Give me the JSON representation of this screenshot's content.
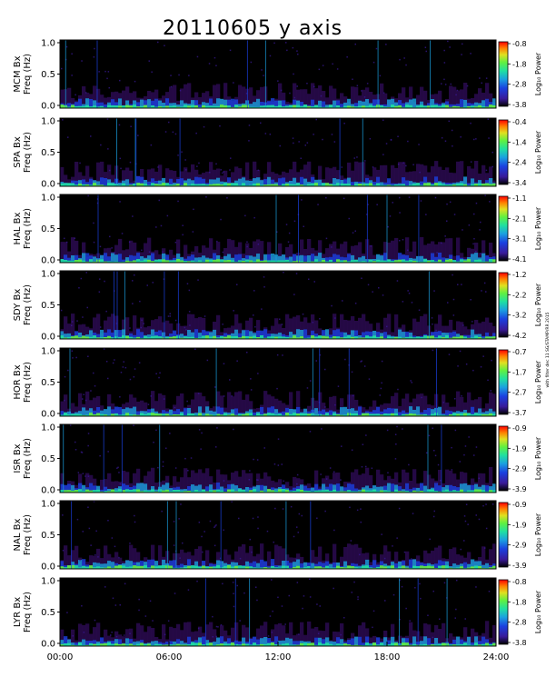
{
  "chart_data": {
    "type": "heatmap",
    "title": "20110605 y axis",
    "x_axis": {
      "range": [
        "00:00",
        "24:00"
      ],
      "ticks": [
        "00:00",
        "06:00",
        "12:00",
        "18:00",
        "24:00"
      ],
      "tick_hours": [
        0,
        6,
        12,
        18,
        24
      ]
    },
    "y_axis": {
      "range": [
        0.0,
        1.0
      ],
      "ticks": [
        "0.0",
        "0.5",
        "1.0"
      ],
      "tick_values": [
        0.0,
        0.5,
        1.0
      ]
    },
    "colorbar_label": "Log₁₀ Power",
    "side_note": "with filter dec 11 SG/STAMP/RR 2015",
    "panels": [
      {
        "station": "MCM",
        "ylabel": "MCM Bx",
        "ylabel2": "Freq (Hz)",
        "cbar_ticks": [
          "-0.8",
          "-1.8",
          "-2.8",
          "-3.8"
        ]
      },
      {
        "station": "SPA",
        "ylabel": "SPA Bx",
        "ylabel2": "Freq (Hz)",
        "cbar_ticks": [
          "-0.4",
          "-1.4",
          "-2.4",
          "-3.4"
        ]
      },
      {
        "station": "HAL",
        "ylabel": "HAL Bx",
        "ylabel2": "Freq (Hz)",
        "cbar_ticks": [
          "-1.1",
          "-2.1",
          "-3.1",
          "-4.1"
        ]
      },
      {
        "station": "SDY",
        "ylabel": "SDY Bx",
        "ylabel2": "Freq (Hz)",
        "cbar_ticks": [
          "-1.2",
          "-2.2",
          "-3.2",
          "-4.2"
        ]
      },
      {
        "station": "HOR",
        "ylabel": "HOR Bx",
        "ylabel2": "Freq (Hz)",
        "cbar_ticks": [
          "-0.7",
          "-1.7",
          "-2.7",
          "-3.7"
        ]
      },
      {
        "station": "ISR",
        "ylabel": "ISR Bx",
        "ylabel2": "Freq (Hz)",
        "cbar_ticks": [
          "-0.9",
          "-1.9",
          "-2.9",
          "-3.9"
        ]
      },
      {
        "station": "NAL",
        "ylabel": "NAL Bx",
        "ylabel2": "Freq (Hz)",
        "cbar_ticks": [
          "-0.9",
          "-1.9",
          "-2.9",
          "-3.9"
        ]
      },
      {
        "station": "LYR",
        "ylabel": "LYR Bx",
        "ylabel2": "Freq (Hz)",
        "cbar_ticks": [
          "-0.8",
          "-1.8",
          "-2.8",
          "-3.8"
        ]
      }
    ],
    "colormap": [
      "#000000",
      "#2a0a50",
      "#3a1a9a",
      "#1a40e0",
      "#1aa0e0",
      "#20e0a0",
      "#60f040",
      "#e0e020",
      "#ff8000",
      "#ff0000"
    ]
  }
}
